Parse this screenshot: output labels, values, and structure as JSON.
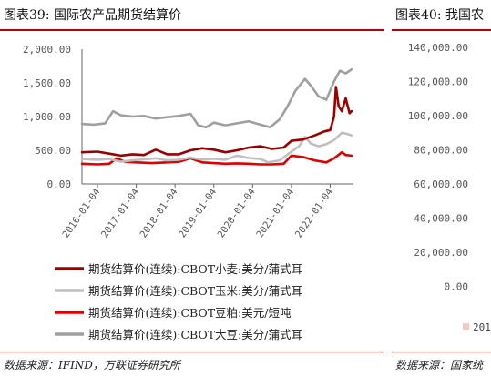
{
  "left_panel": {
    "title": "图表39:  国际农产品期货结算价",
    "source": "数据来源：IFIND，万联证券研究所"
  },
  "right_panel": {
    "title": "图表40:  我国农",
    "source": "数据来源：国家统",
    "yticks": [
      "140,000.00",
      "120,000.00",
      "100,000.00",
      "80,000.00",
      "60,000.00",
      "40,000.00",
      "20,000.00",
      "0.00"
    ],
    "legend_fragment": "201"
  },
  "chart_data": {
    "type": "line",
    "title": "",
    "xlabel": "",
    "ylabel": "",
    "ylim": [
      0,
      2000
    ],
    "yticks": [
      0,
      500,
      1000,
      1500,
      2000
    ],
    "ytick_labels": [
      "0.00",
      "500.00",
      "1,000.00",
      "1,500.00",
      "2,000.00"
    ],
    "xtick_labels": [
      "2016-01-04",
      "2017-01-04",
      "2018-01-04",
      "2019-01-04",
      "2020-01-04",
      "2021-01-04",
      "2022-01-04"
    ],
    "xtick_years": [
      2016,
      2017,
      2018,
      2019,
      2020,
      2021,
      2022
    ],
    "x_range": [
      2015.6,
      2022.6
    ],
    "grid": false,
    "legend_position": "bottom",
    "series": [
      {
        "name": "期货结算价(连续):CBOT小麦:美分/蒲式耳",
        "color": "#9b0000",
        "x": [
          2015.6,
          2016.0,
          2016.3,
          2016.6,
          2016.9,
          2017.2,
          2017.5,
          2017.8,
          2018.1,
          2018.4,
          2018.7,
          2019.0,
          2019.3,
          2019.6,
          2019.9,
          2020.2,
          2020.5,
          2020.8,
          2021.0,
          2021.3,
          2021.6,
          2021.85,
          2022.0,
          2022.1,
          2022.15,
          2022.22,
          2022.3,
          2022.4,
          2022.5,
          2022.55
        ],
        "y": [
          470,
          480,
          450,
          420,
          440,
          430,
          510,
          440,
          440,
          500,
          530,
          510,
          470,
          500,
          540,
          560,
          520,
          540,
          640,
          660,
          720,
          780,
          800,
          1000,
          1440,
          1150,
          1080,
          1270,
          1050,
          1080
        ]
      },
      {
        "name": "期货结算价(连续):CBOT玉米:美分/蒲式耳",
        "color": "#bfbfbf",
        "x": [
          2015.6,
          2016.0,
          2016.3,
          2016.6,
          2016.9,
          2017.2,
          2017.5,
          2017.8,
          2018.1,
          2018.4,
          2018.7,
          2019.0,
          2019.3,
          2019.6,
          2019.9,
          2020.2,
          2020.4,
          2020.7,
          2021.0,
          2021.2,
          2021.35,
          2021.5,
          2021.7,
          2021.9,
          2022.1,
          2022.3,
          2022.45,
          2022.55
        ],
        "y": [
          370,
          360,
          370,
          330,
          350,
          365,
          380,
          350,
          360,
          390,
          360,
          375,
          360,
          420,
          385,
          370,
          320,
          350,
          480,
          560,
          700,
          600,
          560,
          590,
          650,
          760,
          740,
          720
        ]
      },
      {
        "name": "期货结算价(连续):CBOT豆粕:美元/短吨",
        "color": "#e00000",
        "x": [
          2015.6,
          2016.0,
          2016.3,
          2016.5,
          2016.7,
          2017.0,
          2017.4,
          2017.8,
          2018.1,
          2018.4,
          2018.7,
          2019.0,
          2019.3,
          2019.6,
          2019.9,
          2020.2,
          2020.5,
          2020.8,
          2021.0,
          2021.3,
          2021.6,
          2021.9,
          2022.1,
          2022.3,
          2022.4,
          2022.55
        ],
        "y": [
          300,
          290,
          300,
          380,
          330,
          320,
          310,
          320,
          330,
          380,
          320,
          310,
          300,
          305,
          300,
          290,
          290,
          300,
          420,
          400,
          350,
          320,
          380,
          470,
          430,
          420
        ]
      },
      {
        "name": "期货结算价(连续):CBOT大豆:美分/蒲式耳",
        "color": "#9f9f9f",
        "x": [
          2015.6,
          2015.9,
          2016.2,
          2016.4,
          2016.6,
          2016.9,
          2017.2,
          2017.5,
          2017.8,
          2018.1,
          2018.4,
          2018.6,
          2018.8,
          2019.0,
          2019.3,
          2019.6,
          2019.9,
          2020.2,
          2020.45,
          2020.7,
          2020.9,
          2021.1,
          2021.35,
          2021.5,
          2021.7,
          2021.9,
          2022.1,
          2022.25,
          2022.4,
          2022.55
        ],
        "y": [
          890,
          880,
          900,
          1080,
          1020,
          1000,
          1010,
          970,
          990,
          1010,
          1040,
          870,
          840,
          910,
          870,
          900,
          930,
          880,
          840,
          960,
          1150,
          1380,
          1560,
          1460,
          1300,
          1250,
          1520,
          1680,
          1640,
          1700
        ]
      }
    ]
  }
}
